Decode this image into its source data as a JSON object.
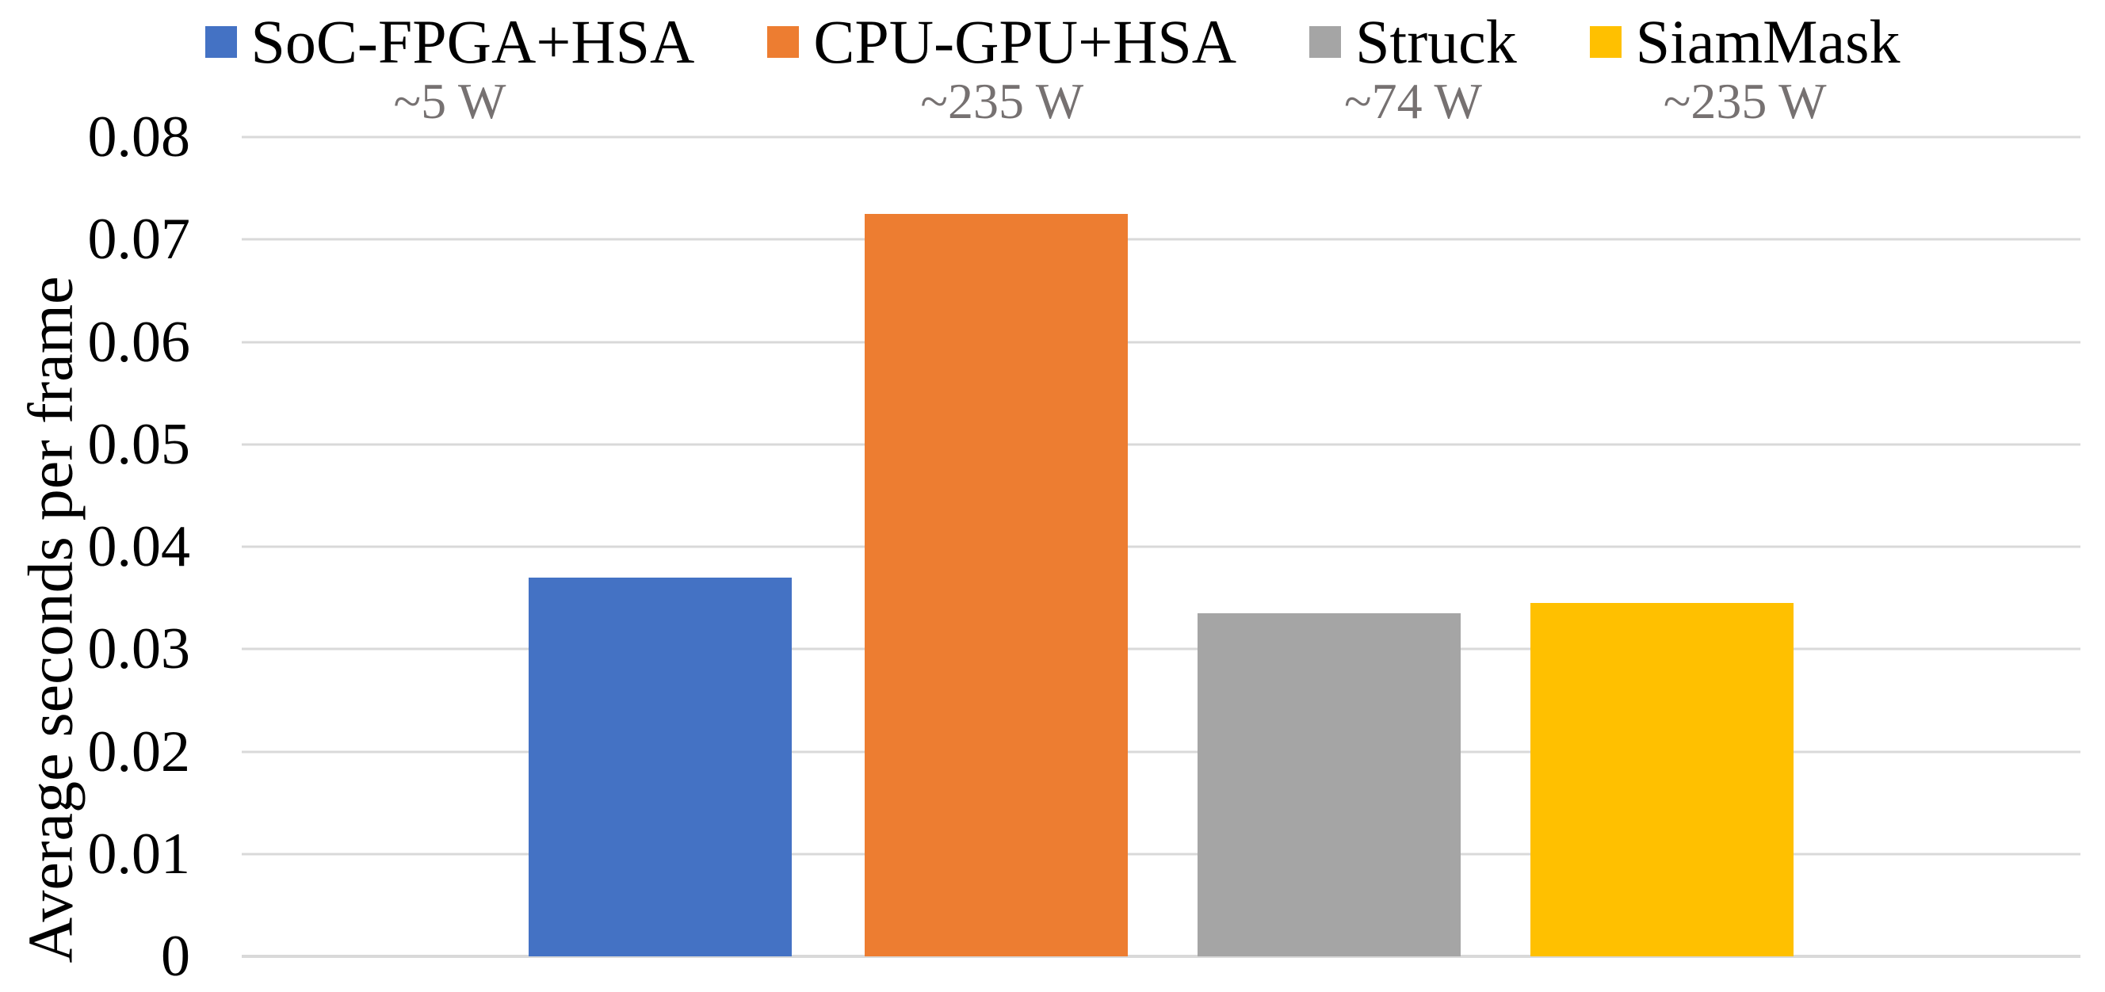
{
  "chart_data": {
    "type": "bar",
    "title": "",
    "xlabel": "",
    "ylabel": "Average seconds per frame",
    "ylim": [
      0,
      0.08
    ],
    "ytick_step": 0.01,
    "ytick_labels": [
      "0.08",
      "0.07",
      "0.06",
      "0.05",
      "0.04",
      "0.03",
      "0.02",
      "0.01",
      "0"
    ],
    "grid": true,
    "legend_position": "top",
    "categories": [
      "SoC-FPGA+HSA",
      "CPU-GPU+HSA",
      "Struck",
      "SiamMask"
    ],
    "series": [
      {
        "name": "SoC-FPGA+HSA",
        "power": "~5 W",
        "value": 0.037,
        "color": "#4472C4"
      },
      {
        "name": "CPU-GPU+HSA",
        "power": "~235 W",
        "value": 0.0725,
        "color": "#ED7D31"
      },
      {
        "name": "Struck",
        "power": "~74 W",
        "value": 0.0335,
        "color": "#A5A5A5"
      },
      {
        "name": "SiamMask",
        "power": "~235 W",
        "value": 0.0345,
        "color": "#FFC000"
      }
    ],
    "colors": {
      "grid": "#D9D9D9",
      "power_label": "#767171",
      "text": "#000000"
    }
  }
}
